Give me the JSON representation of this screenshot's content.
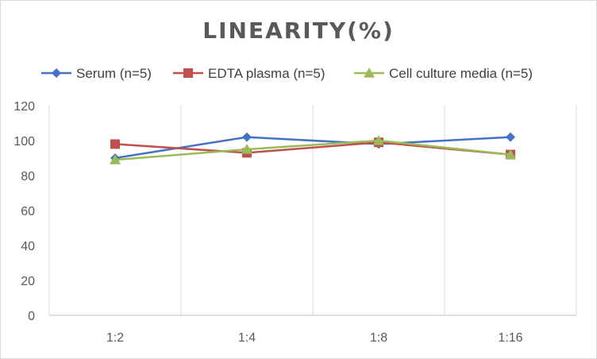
{
  "chart_data": {
    "type": "line",
    "title": "LINEARITY(%)",
    "categories": [
      "1:2",
      "1:4",
      "1:8",
      "1:16"
    ],
    "ylim": [
      0,
      120
    ],
    "yticks": [
      0,
      20,
      40,
      60,
      80,
      100,
      120
    ],
    "xlabel": "",
    "ylabel": "",
    "grid": "vertical",
    "legend_position": "top",
    "series": [
      {
        "name": "Serum (n=5)",
        "color": "#4472C4",
        "marker": "diamond",
        "values": [
          90,
          102,
          98,
          102
        ]
      },
      {
        "name": "EDTA plasma (n=5)",
        "color": "#C0504D",
        "marker": "square",
        "values": [
          98,
          93,
          99,
          92
        ]
      },
      {
        "name": "Cell culture media (n=5)",
        "color": "#9BBB59",
        "marker": "triangle",
        "values": [
          89,
          95,
          100,
          92
        ]
      }
    ]
  }
}
